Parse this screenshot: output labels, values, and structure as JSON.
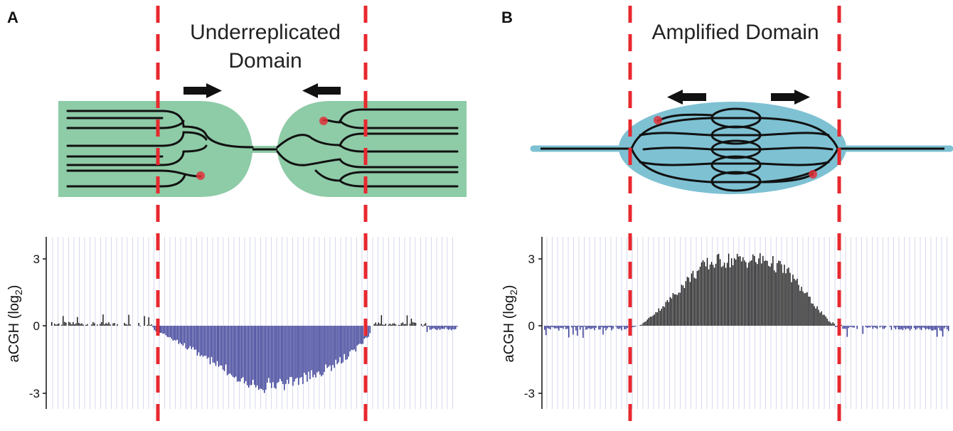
{
  "panels": [
    {
      "label": "A",
      "title_lines": [
        "Underreplicated",
        "Domain"
      ],
      "ylabel": "aCGH (log",
      "ylabel_sub": "2",
      "ylabel_close": ")",
      "yticks": [
        "3",
        "0",
        "-3"
      ],
      "colors": {
        "domain": "#8ecba7",
        "positive": "#111111",
        "negative": "#2b2f8f",
        "boundary": "#e8282f"
      }
    },
    {
      "label": "B",
      "title_lines": [
        "Amplified Domain"
      ],
      "ylabel": "aCGH (log",
      "ylabel_sub": "2",
      "ylabel_close": ")",
      "yticks": [
        "3",
        "0",
        "-3"
      ],
      "colors": {
        "domain": "#7ec1d3",
        "positive": "#111111",
        "negative": "#2b2f8f",
        "boundary": "#e8282f"
      }
    }
  ],
  "chart_data": [
    {
      "type": "bar",
      "panel": "A",
      "ylim": [
        -3.5,
        4
      ],
      "x_range": [
        0,
        100
      ],
      "domain_boundaries": [
        26,
        79
      ],
      "profile": [
        [
          0,
          0.08
        ],
        [
          25,
          0.06
        ],
        [
          26,
          -0.2
        ],
        [
          35,
          -1.1
        ],
        [
          42,
          -1.9
        ],
        [
          48,
          -2.5
        ],
        [
          53,
          -2.75
        ],
        [
          58,
          -2.6
        ],
        [
          64,
          -2.35
        ],
        [
          70,
          -1.8
        ],
        [
          75,
          -1.1
        ],
        [
          78.5,
          -0.4
        ],
        [
          79,
          0.08
        ],
        [
          92,
          0.05
        ],
        [
          94,
          -0.15
        ],
        [
          100,
          -0.12
        ]
      ]
    },
    {
      "type": "bar",
      "panel": "B",
      "ylim": [
        -3.5,
        4
      ],
      "x_range": [
        0,
        100
      ],
      "domain_boundaries": [
        21,
        71
      ],
      "profile": [
        [
          0,
          -0.12
        ],
        [
          21,
          -0.12
        ],
        [
          24,
          0.05
        ],
        [
          30,
          1.0
        ],
        [
          36,
          2.2
        ],
        [
          40,
          2.8
        ],
        [
          44,
          3.0
        ],
        [
          55,
          3.0
        ],
        [
          60,
          2.5
        ],
        [
          64,
          1.6
        ],
        [
          68,
          0.7
        ],
        [
          71,
          0.1
        ],
        [
          73,
          -0.05
        ],
        [
          100,
          -0.15
        ]
      ]
    }
  ]
}
